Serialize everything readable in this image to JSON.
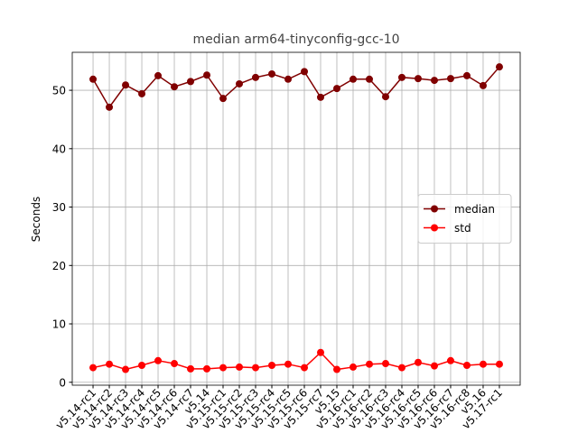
{
  "chart_data": {
    "type": "line",
    "title": "median arm64-tinyconfig-gcc-10",
    "y_label": "Seconds",
    "categories": [
      "v5.14-rc1",
      "v5.14-rc2",
      "v5.14-rc3",
      "v5.14-rc4",
      "v5.14-rc5",
      "v5.14-rc6",
      "v5.14-rc7",
      "v5.14",
      "v5.15-rc1",
      "v5.15-rc2",
      "v5.15-rc3",
      "v5.15-rc4",
      "v5.15-rc5",
      "v5.15-rc6",
      "v5.15-rc7",
      "v5.15",
      "v5.16-rc1",
      "v5.16-rc2",
      "v5.16-rc3",
      "v5.16-rc4",
      "v5.16-rc5",
      "v5.16-rc6",
      "v5.16-rc7",
      "v5.16-rc8",
      "v5.16",
      "v5.17-rc1"
    ],
    "series": [
      {
        "name": "median",
        "color": "#800000",
        "values": [
          51.9,
          47.1,
          50.9,
          49.4,
          52.5,
          50.6,
          51.5,
          52.6,
          48.6,
          51.1,
          52.2,
          52.8,
          51.9,
          53.2,
          48.8,
          50.3,
          51.9,
          51.9,
          48.9,
          52.2,
          52.0,
          51.7,
          52.0,
          52.5,
          50.8,
          54.0
        ]
      },
      {
        "name": "std",
        "color": "#ff0000",
        "values": [
          2.5,
          3.1,
          2.2,
          2.9,
          3.7,
          3.2,
          2.3,
          2.3,
          2.5,
          2.6,
          2.5,
          2.9,
          3.1,
          2.5,
          5.1,
          2.2,
          2.6,
          3.1,
          3.2,
          2.5,
          3.4,
          2.8,
          3.7,
          2.9,
          3.1,
          3.1
        ]
      }
    ],
    "ylim": [
      -0.5,
      56.5
    ],
    "yticks": [
      0,
      10,
      20,
      30,
      40,
      50
    ],
    "grid": true,
    "legend": "center right"
  }
}
